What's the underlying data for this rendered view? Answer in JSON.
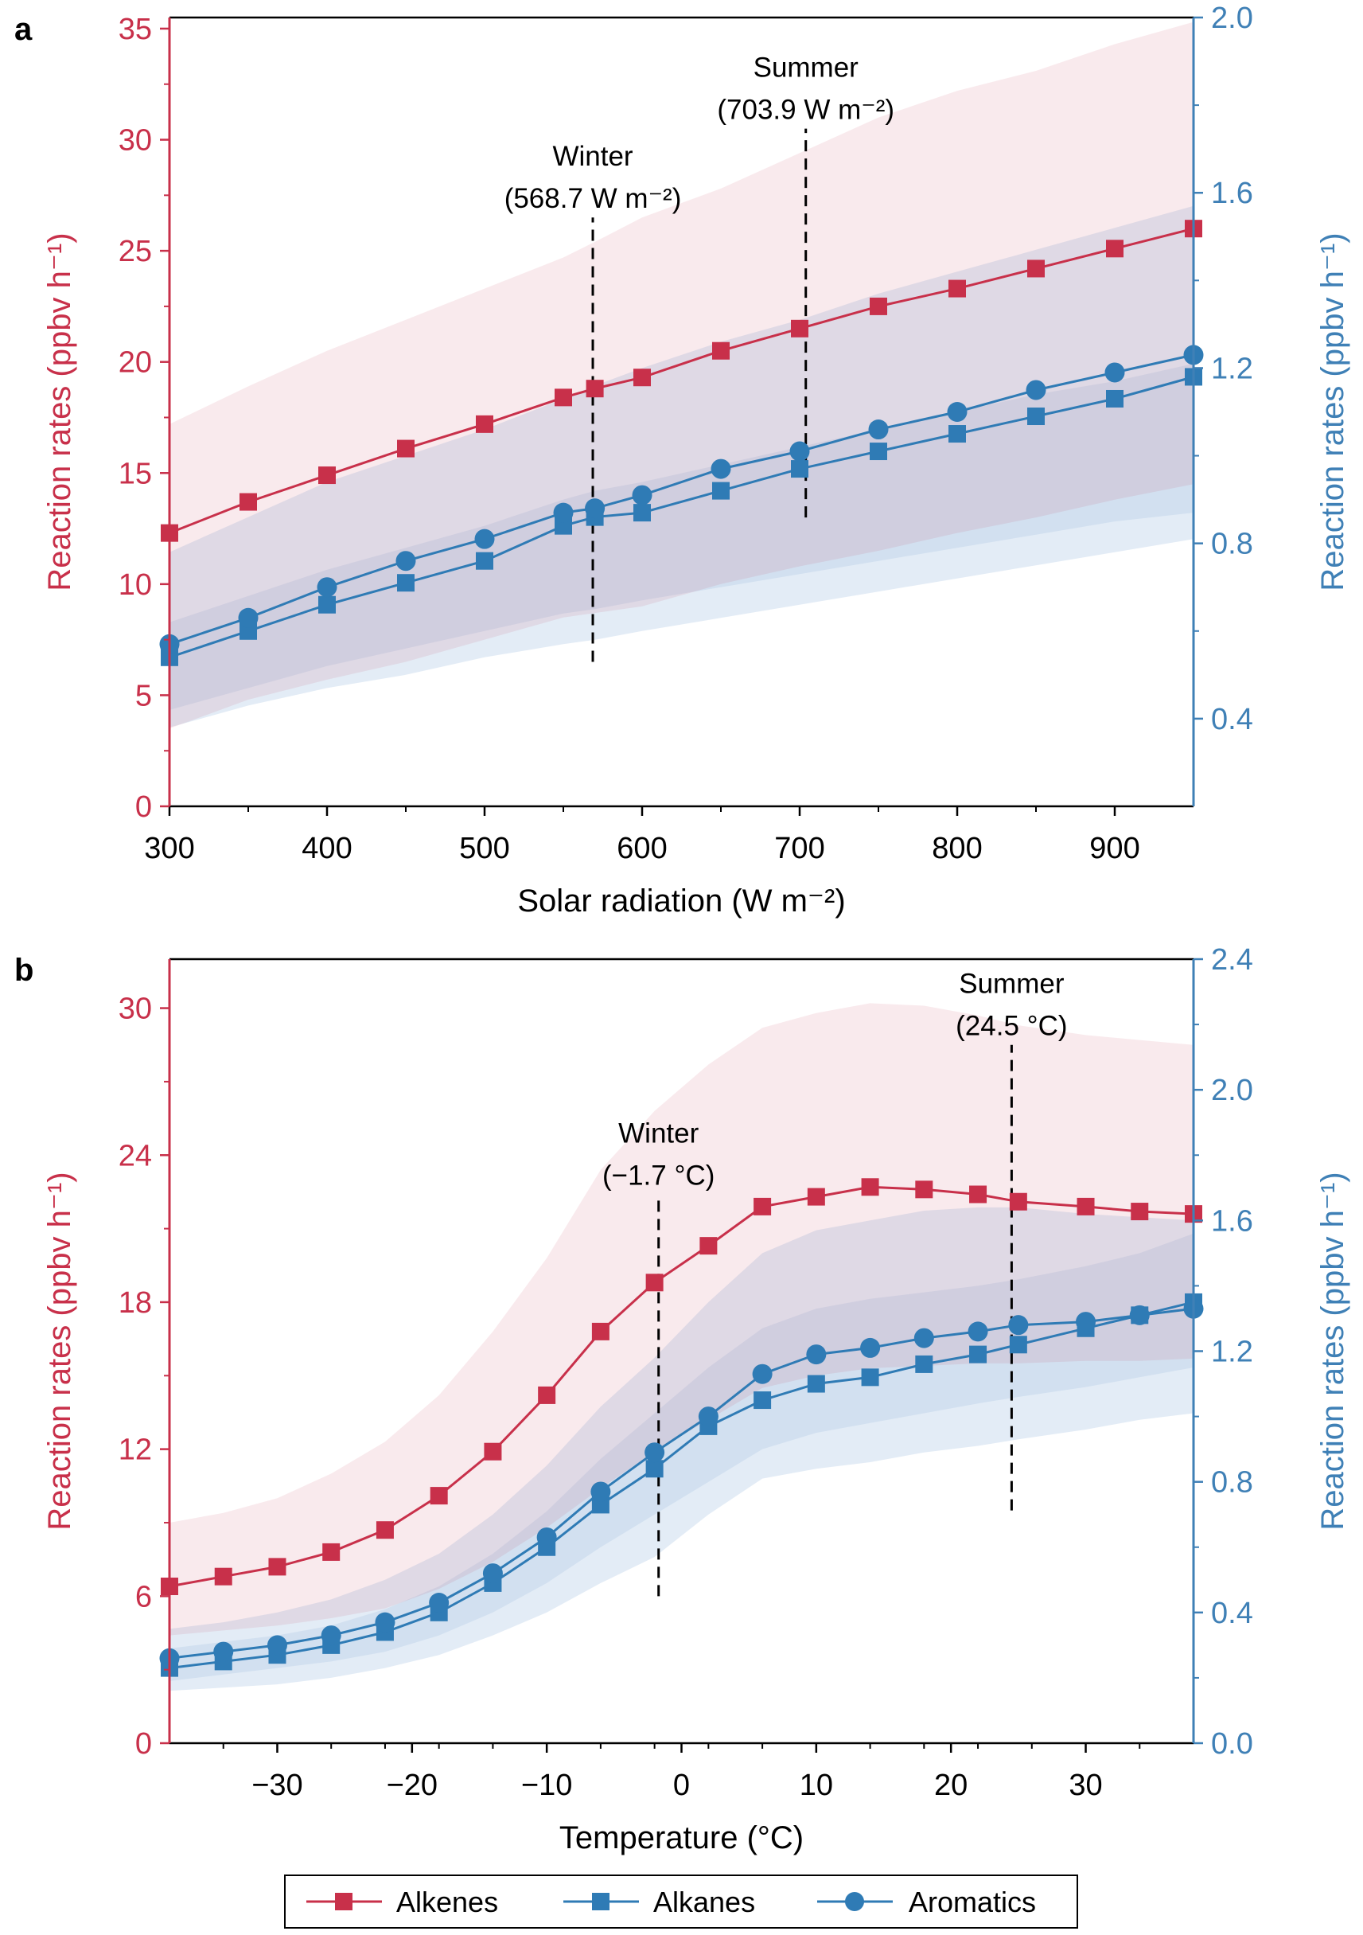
{
  "colors": {
    "alkenes": "#c8304a",
    "alkenes_band": "#f9e4e7",
    "blue": "#2f7bb5",
    "blue_axis": "#3f80b6",
    "blue_band_outer": "#e2ebf5",
    "blue_band_inner": "#cfdff0",
    "axis_black": "#000000"
  },
  "legend": {
    "items": [
      {
        "label": "Alkenes",
        "color": "#c8304a",
        "marker": "square"
      },
      {
        "label": "Alkanes",
        "color": "#2f7bb5",
        "marker": "square"
      },
      {
        "label": "Aromatics",
        "color": "#2f7bb5",
        "marker": "circle"
      }
    ]
  },
  "chart_data": [
    {
      "panel": "a",
      "type": "line",
      "xlabel": "Solar radiation (W m⁻²)",
      "ylabel_left": "Reaction rates (ppbv h⁻¹)",
      "ylabel_right": "Reaction rates (ppbv h⁻¹)",
      "xlim": [
        300,
        950
      ],
      "ylim_left": [
        0,
        35.5
      ],
      "ylim_right": [
        0.2,
        2.0
      ],
      "xticks": [
        300,
        400,
        500,
        600,
        700,
        800,
        900
      ],
      "xticks_minor": [
        350,
        450,
        550,
        650,
        750,
        850
      ],
      "yticks_left": [
        0,
        5,
        10,
        15,
        20,
        25,
        30,
        35
      ],
      "yticks_right": [
        0.4,
        0.8,
        1.2,
        1.6,
        2.0
      ],
      "yticks_right_minor": [
        0.6,
        1.0,
        1.4,
        1.8
      ],
      "series": [
        {
          "name": "Alkenes",
          "axis": "left",
          "marker": "square",
          "x": [
            300,
            350,
            400,
            450,
            500,
            550,
            570,
            600,
            650,
            700,
            750,
            800,
            850,
            900,
            950
          ],
          "y": [
            12.3,
            13.7,
            14.9,
            16.1,
            17.2,
            18.4,
            18.8,
            19.3,
            20.5,
            21.5,
            22.5,
            23.3,
            24.2,
            25.1,
            26.0
          ]
        },
        {
          "name": "Alkanes",
          "axis": "right",
          "marker": "square",
          "x": [
            300,
            350,
            400,
            450,
            500,
            550,
            570,
            600,
            650,
            700,
            750,
            800,
            850,
            900,
            950
          ],
          "y": [
            0.54,
            0.6,
            0.66,
            0.71,
            0.76,
            0.84,
            0.86,
            0.87,
            0.92,
            0.97,
            1.01,
            1.05,
            1.09,
            1.13,
            1.18
          ]
        },
        {
          "name": "Aromatics",
          "axis": "right",
          "marker": "circle",
          "x": [
            300,
            350,
            400,
            450,
            500,
            550,
            570,
            600,
            650,
            700,
            750,
            800,
            850,
            900,
            950
          ],
          "y": [
            0.57,
            0.63,
            0.7,
            0.76,
            0.81,
            0.87,
            0.88,
            0.91,
            0.97,
            1.01,
            1.06,
            1.1,
            1.15,
            1.19,
            1.23
          ]
        }
      ],
      "bands": [
        {
          "name": "Alkenes range",
          "axis": "left",
          "x": [
            300,
            350,
            400,
            450,
            500,
            550,
            570,
            600,
            650,
            700,
            750,
            800,
            850,
            900,
            950
          ],
          "lower": [
            3.5,
            4.8,
            5.7,
            6.5,
            7.5,
            8.5,
            8.7,
            9.0,
            10.0,
            10.8,
            11.5,
            12.3,
            13.0,
            13.8,
            14.5
          ],
          "upper": [
            17.2,
            18.9,
            20.5,
            21.9,
            23.3,
            24.7,
            25.4,
            26.5,
            27.8,
            29.4,
            31.0,
            32.2,
            33.1,
            34.3,
            35.3
          ]
        },
        {
          "name": "Blue outer range",
          "axis": "right",
          "x": [
            300,
            350,
            400,
            450,
            500,
            550,
            570,
            600,
            650,
            700,
            750,
            800,
            850,
            900,
            950
          ],
          "lower": [
            0.38,
            0.43,
            0.47,
            0.5,
            0.54,
            0.57,
            0.58,
            0.6,
            0.63,
            0.66,
            0.69,
            0.72,
            0.75,
            0.78,
            0.81
          ],
          "upper": [
            0.78,
            0.86,
            0.94,
            1.0,
            1.06,
            1.13,
            1.16,
            1.2,
            1.26,
            1.31,
            1.37,
            1.42,
            1.47,
            1.52,
            1.57
          ]
        },
        {
          "name": "Blue inner range",
          "axis": "right",
          "x": [
            300,
            350,
            400,
            450,
            500,
            550,
            570,
            600,
            650,
            700,
            750,
            800,
            850,
            900,
            950
          ],
          "lower": [
            0.42,
            0.47,
            0.52,
            0.56,
            0.6,
            0.64,
            0.65,
            0.67,
            0.7,
            0.73,
            0.76,
            0.79,
            0.82,
            0.85,
            0.87
          ],
          "upper": [
            0.62,
            0.68,
            0.74,
            0.79,
            0.84,
            0.9,
            0.92,
            0.94,
            0.98,
            1.02,
            1.06,
            1.1,
            1.14,
            1.17,
            1.21
          ]
        }
      ],
      "annotations": [
        {
          "id": "winter",
          "title": "Winter",
          "value": "(568.7 W m⁻²)",
          "x": 568.7,
          "y_from": 6.5,
          "y_to": 26.5
        },
        {
          "id": "summer",
          "title": "Summer",
          "value": "(703.9 W m⁻²)",
          "x": 703.9,
          "y_from": 13.0,
          "y_to": 30.5
        }
      ]
    },
    {
      "panel": "b",
      "type": "line",
      "xlabel": "Temperature (°C)",
      "ylabel_left": "Reaction rates (ppbv h⁻¹)",
      "ylabel_right": "Reaction rates (ppbv h⁻¹)",
      "xlim": [
        -38,
        38
      ],
      "ylim_left": [
        0,
        32
      ],
      "ylim_right": [
        0,
        2.4
      ],
      "xticks": [
        -30,
        -20,
        -10,
        0,
        10,
        20,
        30
      ],
      "xticks_minor": [
        -34,
        -26,
        -22,
        -18,
        -14,
        -6,
        -2,
        2,
        6,
        14,
        18,
        22,
        26,
        34
      ],
      "yticks_left": [
        0,
        6,
        12,
        18,
        24,
        30
      ],
      "yticks_right": [
        0.0,
        0.4,
        0.8,
        1.2,
        1.6,
        2.0,
        2.4
      ],
      "yticks_right_minor": [
        0.2,
        0.6,
        1.0,
        1.4,
        1.8,
        2.2
      ],
      "series": [
        {
          "name": "Alkenes",
          "axis": "left",
          "marker": "square",
          "x": [
            -38,
            -34,
            -30,
            -26,
            -22,
            -18,
            -14,
            -10,
            -6,
            -2,
            2,
            6,
            10,
            14,
            18,
            22,
            25,
            30,
            34,
            38
          ],
          "y": [
            6.4,
            6.8,
            7.2,
            7.8,
            8.7,
            10.1,
            11.9,
            14.2,
            16.8,
            18.8,
            20.3,
            21.9,
            22.3,
            22.7,
            22.6,
            22.4,
            22.1,
            21.9,
            21.7,
            21.6
          ]
        },
        {
          "name": "Alkanes",
          "axis": "right",
          "marker": "square",
          "x": [
            -38,
            -34,
            -30,
            -26,
            -22,
            -18,
            -14,
            -10,
            -6,
            -2,
            2,
            6,
            10,
            14,
            18,
            22,
            25,
            30,
            34,
            38
          ],
          "y": [
            0.23,
            0.25,
            0.27,
            0.3,
            0.34,
            0.4,
            0.49,
            0.6,
            0.73,
            0.84,
            0.97,
            1.05,
            1.1,
            1.12,
            1.16,
            1.19,
            1.22,
            1.27,
            1.31,
            1.35
          ]
        },
        {
          "name": "Aromatics",
          "axis": "right",
          "marker": "circle",
          "x": [
            -38,
            -34,
            -30,
            -26,
            -22,
            -18,
            -14,
            -10,
            -6,
            -2,
            2,
            6,
            10,
            14,
            18,
            22,
            25,
            30,
            34,
            38
          ],
          "y": [
            0.26,
            0.28,
            0.3,
            0.33,
            0.37,
            0.43,
            0.52,
            0.63,
            0.77,
            0.89,
            1.0,
            1.13,
            1.19,
            1.21,
            1.24,
            1.26,
            1.28,
            1.29,
            1.31,
            1.33
          ]
        }
      ],
      "bands": [
        {
          "name": "Alkenes range",
          "axis": "left",
          "x": [
            -38,
            -34,
            -30,
            -26,
            -22,
            -18,
            -14,
            -10,
            -6,
            -2,
            2,
            6,
            10,
            14,
            18,
            22,
            25,
            30,
            34,
            38
          ],
          "lower": [
            4.4,
            4.6,
            4.8,
            5.1,
            5.5,
            6.3,
            7.4,
            8.8,
            10.4,
            11.9,
            13.2,
            14.5,
            15.0,
            15.3,
            15.4,
            15.5,
            15.5,
            15.6,
            15.6,
            15.7
          ],
          "upper": [
            9.0,
            9.4,
            10.0,
            11.0,
            12.3,
            14.2,
            16.8,
            19.8,
            23.4,
            25.8,
            27.7,
            29.2,
            29.8,
            30.2,
            30.1,
            29.7,
            29.3,
            28.9,
            28.7,
            28.5
          ]
        },
        {
          "name": "Blue outer range",
          "axis": "right",
          "x": [
            -38,
            -34,
            -30,
            -26,
            -22,
            -18,
            -14,
            -10,
            -6,
            -2,
            2,
            6,
            10,
            14,
            18,
            22,
            25,
            30,
            34,
            38
          ],
          "lower": [
            0.16,
            0.17,
            0.18,
            0.2,
            0.23,
            0.27,
            0.33,
            0.4,
            0.49,
            0.57,
            0.7,
            0.81,
            0.84,
            0.86,
            0.89,
            0.91,
            0.93,
            0.96,
            0.99,
            1.01
          ],
          "upper": [
            0.35,
            0.37,
            0.4,
            0.44,
            0.5,
            0.58,
            0.7,
            0.85,
            1.03,
            1.18,
            1.35,
            1.5,
            1.57,
            1.6,
            1.63,
            1.64,
            1.64,
            1.62,
            1.61,
            1.6
          ]
        },
        {
          "name": "Blue inner range",
          "axis": "right",
          "x": [
            -38,
            -34,
            -30,
            -26,
            -22,
            -18,
            -14,
            -10,
            -6,
            -2,
            2,
            6,
            10,
            14,
            18,
            22,
            25,
            30,
            34,
            38
          ],
          "lower": [
            0.19,
            0.21,
            0.23,
            0.25,
            0.28,
            0.33,
            0.4,
            0.49,
            0.6,
            0.7,
            0.8,
            0.9,
            0.95,
            0.98,
            1.01,
            1.04,
            1.06,
            1.09,
            1.12,
            1.15
          ]
        },
        {
          "name": "Blue inner range upper",
          "axis": "right",
          "x": [
            -38,
            -34,
            -30,
            -26,
            -22,
            -18,
            -14,
            -10,
            -6,
            -2,
            2,
            6,
            10,
            14,
            18,
            22,
            25,
            30,
            34,
            38
          ],
          "upper": [
            0.29,
            0.31,
            0.33,
            0.36,
            0.41,
            0.48,
            0.58,
            0.71,
            0.87,
            1.01,
            1.15,
            1.27,
            1.33,
            1.36,
            1.38,
            1.4,
            1.42,
            1.46,
            1.5,
            1.56
          ]
        }
      ],
      "annotations": [
        {
          "id": "winter",
          "title": "Winter",
          "value": "(−1.7 °C)",
          "x": -1.7,
          "y_from": 6.0,
          "y_to": 22.4
        },
        {
          "id": "summer",
          "title": "Summer",
          "value": "(24.5 °C)",
          "x": 24.5,
          "y_from": 9.5,
          "y_to": 28.5
        }
      ]
    }
  ],
  "panels": {
    "a": {
      "letter": "a"
    },
    "b": {
      "letter": "b"
    }
  }
}
